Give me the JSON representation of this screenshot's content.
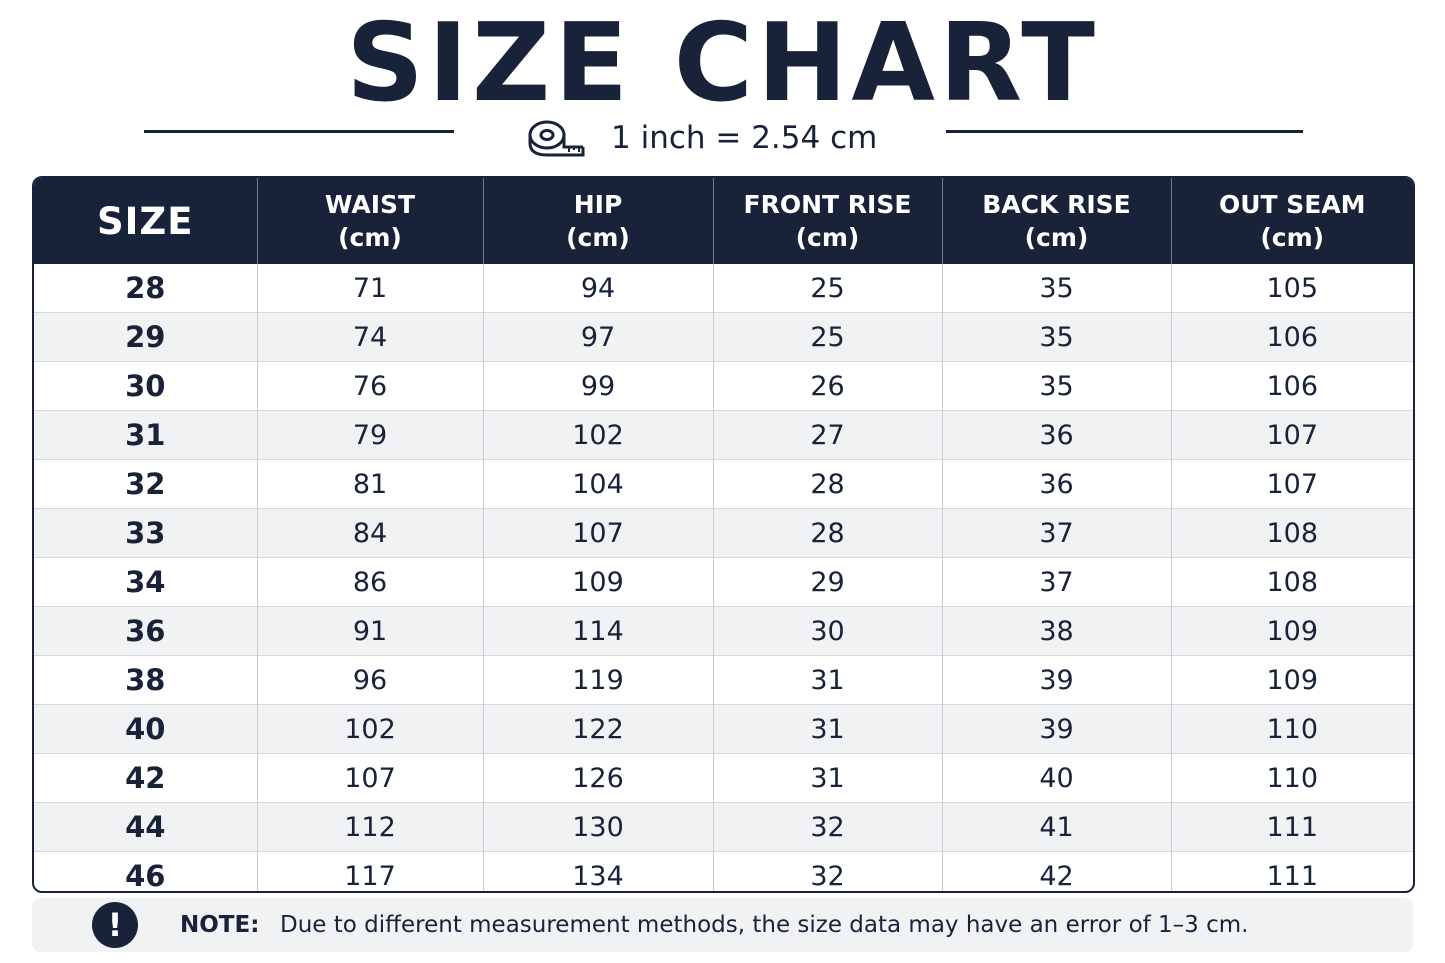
{
  "title": "SIZE CHART",
  "conversion": {
    "icon": "measuring-tape-icon",
    "text": "1 inch = 2.54 cm"
  },
  "table": {
    "headers": [
      {
        "line1": "SIZE",
        "line2": ""
      },
      {
        "line1": "WAIST",
        "line2": "(cm)"
      },
      {
        "line1": "HIP",
        "line2": "(cm)"
      },
      {
        "line1": "FRONT RISE",
        "line2": "(cm)"
      },
      {
        "line1": "BACK RISE",
        "line2": "(cm)"
      },
      {
        "line1": "OUT SEAM",
        "line2": "(cm)"
      }
    ],
    "rows": [
      [
        "28",
        "71",
        "94",
        "25",
        "35",
        "105"
      ],
      [
        "29",
        "74",
        "97",
        "25",
        "35",
        "106"
      ],
      [
        "30",
        "76",
        "99",
        "26",
        "35",
        "106"
      ],
      [
        "31",
        "79",
        "102",
        "27",
        "36",
        "107"
      ],
      [
        "32",
        "81",
        "104",
        "28",
        "36",
        "107"
      ],
      [
        "33",
        "84",
        "107",
        "28",
        "37",
        "108"
      ],
      [
        "34",
        "86",
        "109",
        "29",
        "37",
        "108"
      ],
      [
        "36",
        "91",
        "114",
        "30",
        "38",
        "109"
      ],
      [
        "38",
        "96",
        "119",
        "31",
        "39",
        "109"
      ],
      [
        "40",
        "102",
        "122",
        "31",
        "39",
        "110"
      ],
      [
        "42",
        "107",
        "126",
        "31",
        "40",
        "110"
      ],
      [
        "44",
        "112",
        "130",
        "32",
        "41",
        "111"
      ],
      [
        "46",
        "117",
        "134",
        "32",
        "42",
        "111"
      ]
    ]
  },
  "note": {
    "icon": "exclamation-icon",
    "icon_glyph": "!",
    "label": "NOTE:",
    "text": "Due to different measurement methods, the size data may have an error of 1–3 cm."
  },
  "colors": {
    "navy": "#18233a",
    "stripe": "#f1f2f4",
    "white": "#ffffff"
  }
}
